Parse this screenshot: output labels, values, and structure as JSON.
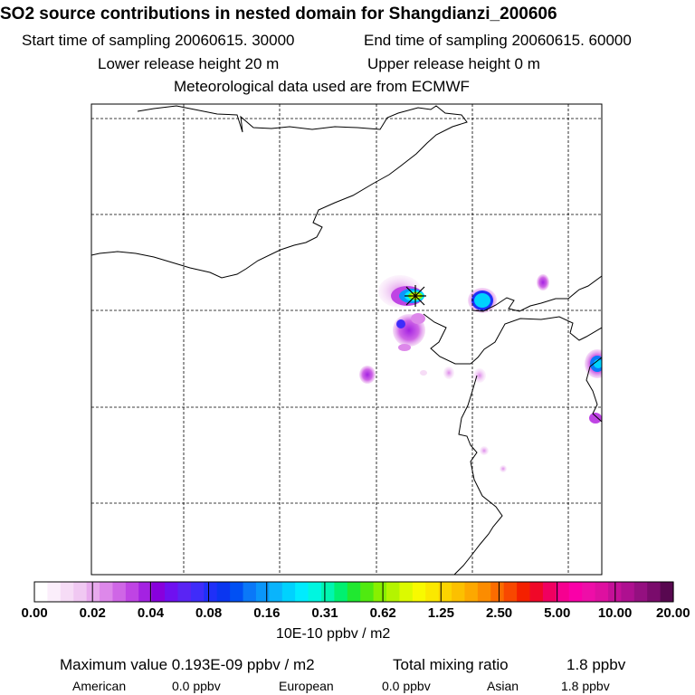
{
  "header": {
    "title": "SO2 source contributions in nested domain for Shangdianzi_200606",
    "start": "Start time of sampling 20060615. 30000",
    "end": "End time of sampling 20060615. 60000",
    "lower": "Lower release height   20 m",
    "upper": "Upper release height    0 m",
    "met": "Meteorological data used are from ECMWF"
  },
  "colorbar": {
    "ticks": [
      "0.00",
      "0.02",
      "0.04",
      "0.08",
      "0.16",
      "0.31",
      "0.62",
      "1.25",
      "2.50",
      "5.00",
      "10.00",
      "20.00"
    ],
    "unit": "10E-10 ppbv / m2",
    "colors": [
      "#ffffff",
      "#fbeefb",
      "#f6dcf6",
      "#f0c8f2",
      "#e8aaee",
      "#dd88ea",
      "#cf66e6",
      "#bf44e4",
      "#a422e2",
      "#8800dd",
      "#6f10f0",
      "#5a24f4",
      "#3f2cfa",
      "#1f30f8",
      "#0a36f0",
      "#0050f4",
      "#0a78f8",
      "#0a96fa",
      "#0ab4fc",
      "#00d2fe",
      "#00ecfe",
      "#00f6e0",
      "#00f6b0",
      "#00f070",
      "#20e830",
      "#50ea10",
      "#88f000",
      "#b4f400",
      "#dcfa00",
      "#f8fa00",
      "#fbe800",
      "#fcd400",
      "#fcc000",
      "#fda800",
      "#fc8c00",
      "#fb6c00",
      "#f84800",
      "#f42000",
      "#f00828",
      "#f00060",
      "#f60090",
      "#fa00a8",
      "#ee0ea8",
      "#de10a0",
      "#c41098",
      "#ae1090",
      "#941080",
      "#7a0c6c",
      "#580850"
    ]
  },
  "map": {
    "marker": "receptor-site"
  },
  "footer": {
    "max_label": "Maximum value  0.193E-09 ppbv / m2",
    "total_label": "Total mixing ratio",
    "total_value": "1.8 ppbv",
    "american_label": "American",
    "american_value": "0.0 ppbv",
    "european_label": "European",
    "european_value": "0.0 ppbv",
    "asian_label": "Asian",
    "asian_value": "1.8 ppbv"
  }
}
